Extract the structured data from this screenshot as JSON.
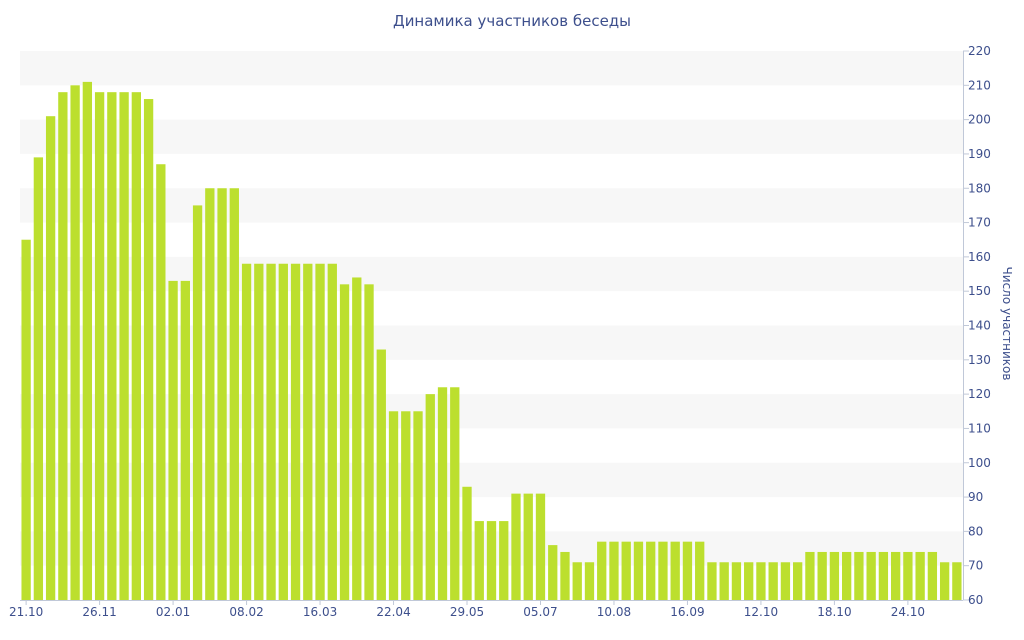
{
  "chart_data": {
    "type": "bar",
    "title": "Динамика участников беседы",
    "xlabel": "",
    "ylabel": "Число участников",
    "ylim": [
      60,
      220
    ],
    "y_ticks": [
      60,
      70,
      80,
      90,
      100,
      110,
      120,
      130,
      140,
      150,
      160,
      170,
      180,
      190,
      200,
      210,
      220
    ],
    "x_tick_labels": [
      "21.10",
      "26.11",
      "02.01",
      "08.02",
      "16.03",
      "22.04",
      "29.05",
      "05.07",
      "10.08",
      "16.09",
      "12.10",
      "18.10",
      "24.10"
    ],
    "x_tick_indices": [
      0,
      6,
      12,
      18,
      24,
      30,
      36,
      42,
      48,
      54,
      60,
      66,
      72
    ],
    "grid": true,
    "bar_color": "#bcdf2e",
    "band_color": "#f7f7f7",
    "text_color": "#3d4f8c",
    "values": [
      165,
      189,
      201,
      208,
      210,
      211,
      208,
      208,
      208,
      208,
      206,
      187,
      153,
      153,
      175,
      180,
      180,
      180,
      158,
      158,
      158,
      158,
      158,
      158,
      158,
      158,
      152,
      154,
      152,
      133,
      115,
      115,
      115,
      120,
      122,
      122,
      93,
      83,
      83,
      83,
      91,
      91,
      91,
      76,
      74,
      71,
      71,
      77,
      77,
      77,
      77,
      77,
      77,
      77,
      77,
      77,
      71,
      71,
      71,
      71,
      71,
      71,
      71,
      71,
      74,
      74,
      74,
      74,
      74,
      74,
      74,
      74,
      74,
      74,
      74,
      71,
      71
    ]
  }
}
